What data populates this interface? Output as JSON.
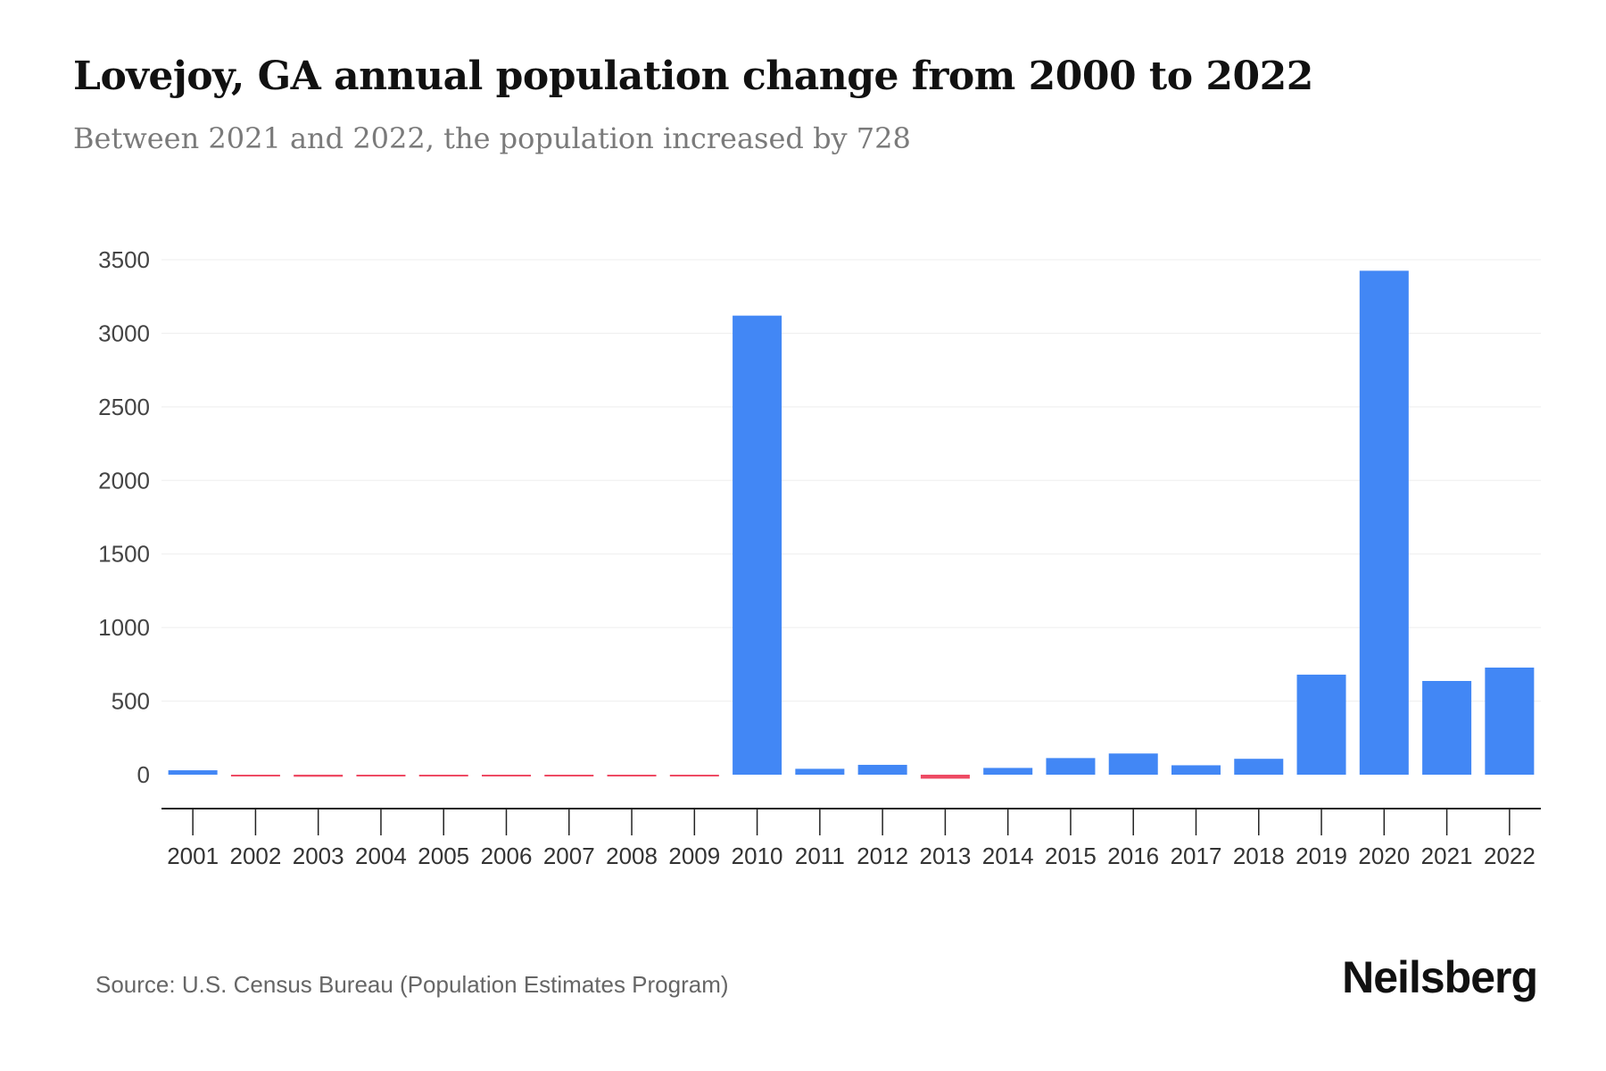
{
  "chart_data": {
    "type": "bar",
    "title": "Lovejoy, GA annual population change from 2000 to 2022",
    "subtitle": "Between 2021 and 2022, the population increased by 728",
    "xlabel": "",
    "ylabel": "",
    "ylim": [
      -250,
      3500
    ],
    "yticks": [
      0,
      500,
      1000,
      1500,
      2000,
      2500,
      3000,
      3500
    ],
    "grid": true,
    "categories": [
      "2001",
      "2002",
      "2003",
      "2004",
      "2005",
      "2006",
      "2007",
      "2008",
      "2009",
      "2010",
      "2011",
      "2012",
      "2013",
      "2014",
      "2015",
      "2016",
      "2017",
      "2018",
      "2019",
      "2020",
      "2021",
      "2022"
    ],
    "values": [
      30,
      -8,
      -14,
      -3,
      -12,
      -2,
      -6,
      -5,
      -6,
      3120,
      40,
      67,
      -27,
      46,
      113,
      144,
      64,
      108,
      680,
      3425,
      637,
      728
    ],
    "colors": {
      "positive": "#4287f5",
      "negative": "#ee4a63",
      "grid": "#eeeeee",
      "axis": "#222222"
    }
  },
  "footer": {
    "source": "Source: U.S. Census Bureau (Population Estimates Program)",
    "logo": "Neilsberg"
  }
}
